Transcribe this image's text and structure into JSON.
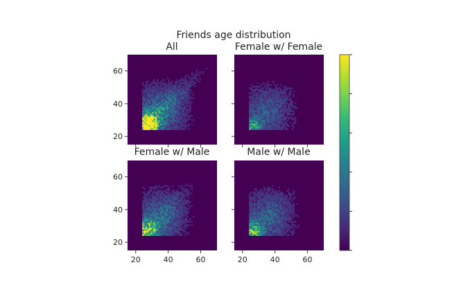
{
  "chart_data": {
    "type": "heatmap",
    "title": "Friends age distribution",
    "panels": [
      {
        "title": "All",
        "peak": [
          27,
          27
        ],
        "scale": 1.0,
        "spread": 4.2,
        "diag": 0.75,
        "cloud": 0.22
      },
      {
        "title": "Female w/ Female",
        "peak": [
          26,
          26
        ],
        "scale": 0.32,
        "spread": 3.8,
        "diag": 0.55,
        "cloud": 0.16
      },
      {
        "title": "Female w/ Male",
        "peak": [
          27,
          27
        ],
        "scale": 0.58,
        "spread": 4.0,
        "diag": 0.7,
        "cloud": 0.2
      },
      {
        "title": "Male w/ Male",
        "peak": [
          26,
          26
        ],
        "scale": 0.45,
        "spread": 3.9,
        "diag": 0.6,
        "cloud": 0.18
      }
    ],
    "xlim": [
      15,
      70
    ],
    "ylim": [
      15,
      70
    ],
    "x_ticks": [
      20,
      40,
      60
    ],
    "y_ticks": [
      20,
      40,
      60
    ],
    "data_floor": 24,
    "colormap": "viridis",
    "colormap_stops": [
      "#440154",
      "#482878",
      "#3e4a89",
      "#31688e",
      "#26828e",
      "#1f9e89",
      "#35b779",
      "#6ece58",
      "#b5de2b",
      "#fde725"
    ],
    "colorbar_tick_labels": [
      "",
      "",
      "",
      "",
      "",
      ""
    ]
  }
}
